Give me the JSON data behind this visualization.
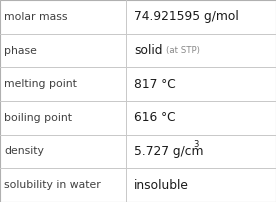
{
  "rows": [
    {
      "label": "molar mass",
      "value": "74.921595 g/mol",
      "superscript": null,
      "extra": null
    },
    {
      "label": "phase",
      "value": "solid",
      "superscript": null,
      "extra": "(at STP)"
    },
    {
      "label": "melting point",
      "value": "817 °C",
      "superscript": null,
      "extra": null
    },
    {
      "label": "boiling point",
      "value": "616 °C",
      "superscript": null,
      "extra": null
    },
    {
      "label": "density",
      "value": "5.727 g/cm",
      "superscript": "3",
      "extra": null
    },
    {
      "label": "solubility in water",
      "value": "insoluble",
      "superscript": null,
      "extra": null
    }
  ],
  "background_color": "#ffffff",
  "border_color": "#b0b0b0",
  "label_color": "#404040",
  "value_color": "#1a1a1a",
  "extra_color": "#888888",
  "label_fontsize": 7.8,
  "value_fontsize": 8.8,
  "extra_fontsize": 6.2,
  "sup_fontsize": 6.0,
  "divider_color": "#c8c8c8",
  "col_split": 0.455,
  "fig_width": 2.76,
  "fig_height": 2.02,
  "dpi": 100
}
